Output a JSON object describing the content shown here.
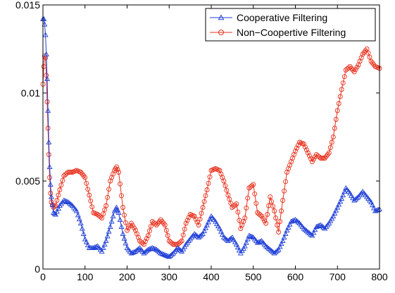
{
  "chart_data": {
    "type": "line",
    "title": "",
    "xlabel": "",
    "ylabel": "",
    "xlim": [
      0,
      800
    ],
    "ylim": [
      0,
      0.015
    ],
    "grid": false,
    "legend_position": "top-right",
    "x_ticks": [
      0,
      100,
      200,
      300,
      400,
      500,
      600,
      700,
      800
    ],
    "y_ticks": [
      0,
      0.005,
      0.01,
      0.015
    ],
    "x_tick_labels": [
      "0",
      "100",
      "200",
      "300",
      "400",
      "500",
      "600",
      "700",
      "800"
    ],
    "y_tick_labels": [
      "0",
      "0.005",
      "0.01",
      "0.015"
    ],
    "colors": {
      "axis": "#000000",
      "cooperative": "#1f3fd6",
      "noncooperative": "#e8321e",
      "background": "#ffffff"
    },
    "series": [
      {
        "name": "Cooperative Filtering",
        "marker": "triangle",
        "color": "#1f3fd6",
        "x": [
          0,
          2,
          4,
          6,
          8,
          10,
          12,
          14,
          16,
          18,
          20,
          25,
          30,
          40,
          50,
          60,
          70,
          80,
          90,
          100,
          110,
          120,
          130,
          140,
          150,
          160,
          170,
          175,
          180,
          190,
          200,
          210,
          220,
          230,
          240,
          250,
          260,
          270,
          280,
          290,
          300,
          310,
          320,
          330,
          340,
          350,
          360,
          370,
          380,
          390,
          400,
          410,
          420,
          430,
          440,
          450,
          460,
          470,
          480,
          490,
          500,
          510,
          520,
          530,
          540,
          550,
          560,
          570,
          580,
          590,
          600,
          610,
          620,
          630,
          640,
          650,
          660,
          670,
          680,
          690,
          700,
          710,
          720,
          730,
          740,
          750,
          760,
          770,
          780,
          790,
          800
        ],
        "y": [
          0.0142,
          0.0142,
          0.0139,
          0.0133,
          0.0122,
          0.0108,
          0.009,
          0.0072,
          0.0058,
          0.0048,
          0.0041,
          0.0032,
          0.0031,
          0.0036,
          0.0039,
          0.0038,
          0.0036,
          0.0033,
          0.0026,
          0.0017,
          0.0012,
          0.0012,
          0.0013,
          0.001,
          0.0016,
          0.0024,
          0.0033,
          0.0035,
          0.0032,
          0.002,
          0.0012,
          0.0009,
          0.001,
          0.0012,
          0.0009,
          0.0011,
          0.0012,
          0.0011,
          0.0009,
          0.0008,
          0.0007,
          0.0009,
          0.0012,
          0.001,
          0.0014,
          0.0017,
          0.002,
          0.0018,
          0.002,
          0.0025,
          0.003,
          0.0027,
          0.0023,
          0.0018,
          0.0016,
          0.0018,
          0.0014,
          0.0009,
          0.0013,
          0.0019,
          0.0018,
          0.0015,
          0.0016,
          0.0013,
          0.0011,
          0.0009,
          0.0011,
          0.0016,
          0.0022,
          0.0027,
          0.0028,
          0.0026,
          0.0023,
          0.0021,
          0.0019,
          0.0024,
          0.0025,
          0.0023,
          0.0026,
          0.003,
          0.0035,
          0.004,
          0.0046,
          0.0043,
          0.0039,
          0.0041,
          0.0044,
          0.0041,
          0.0038,
          0.0033,
          0.0034
        ]
      },
      {
        "name": "Non−Coopertive Filtering",
        "marker": "circle",
        "color": "#e8321e",
        "x": [
          0,
          2,
          4,
          6,
          8,
          10,
          12,
          14,
          16,
          18,
          20,
          25,
          30,
          40,
          50,
          60,
          70,
          80,
          90,
          100,
          110,
          120,
          130,
          140,
          150,
          160,
          170,
          175,
          180,
          190,
          200,
          210,
          220,
          230,
          240,
          250,
          260,
          270,
          280,
          290,
          300,
          310,
          320,
          330,
          340,
          350,
          360,
          370,
          380,
          390,
          400,
          410,
          420,
          430,
          440,
          450,
          460,
          470,
          480,
          490,
          500,
          510,
          520,
          530,
          540,
          550,
          560,
          570,
          580,
          590,
          600,
          610,
          620,
          630,
          640,
          650,
          660,
          670,
          680,
          690,
          700,
          710,
          720,
          730,
          740,
          750,
          760,
          770,
          780,
          790,
          800
        ],
        "y": [
          0.0105,
          0.0115,
          0.0121,
          0.012,
          0.011,
          0.0095,
          0.008,
          0.0065,
          0.0052,
          0.0043,
          0.0038,
          0.0035,
          0.0036,
          0.0045,
          0.0053,
          0.0055,
          0.0055,
          0.0056,
          0.0055,
          0.0052,
          0.0042,
          0.0032,
          0.0031,
          0.0029,
          0.0036,
          0.005,
          0.0056,
          0.0058,
          0.0055,
          0.0035,
          0.0022,
          0.0026,
          0.0022,
          0.0016,
          0.0014,
          0.0019,
          0.0027,
          0.0025,
          0.0028,
          0.0025,
          0.0016,
          0.0014,
          0.0014,
          0.0016,
          0.0026,
          0.0031,
          0.003,
          0.0025,
          0.0035,
          0.0045,
          0.0056,
          0.0057,
          0.0056,
          0.005,
          0.0042,
          0.0035,
          0.0037,
          0.0023,
          0.0029,
          0.0046,
          0.0048,
          0.0032,
          0.003,
          0.0026,
          0.0041,
          0.0033,
          0.0021,
          0.0039,
          0.0055,
          0.0061,
          0.0067,
          0.0072,
          0.0071,
          0.0066,
          0.0061,
          0.0065,
          0.0063,
          0.0063,
          0.0066,
          0.0075,
          0.009,
          0.0102,
          0.0113,
          0.0115,
          0.0112,
          0.0116,
          0.0122,
          0.0125,
          0.0118,
          0.0115,
          0.0114
        ]
      }
    ]
  }
}
